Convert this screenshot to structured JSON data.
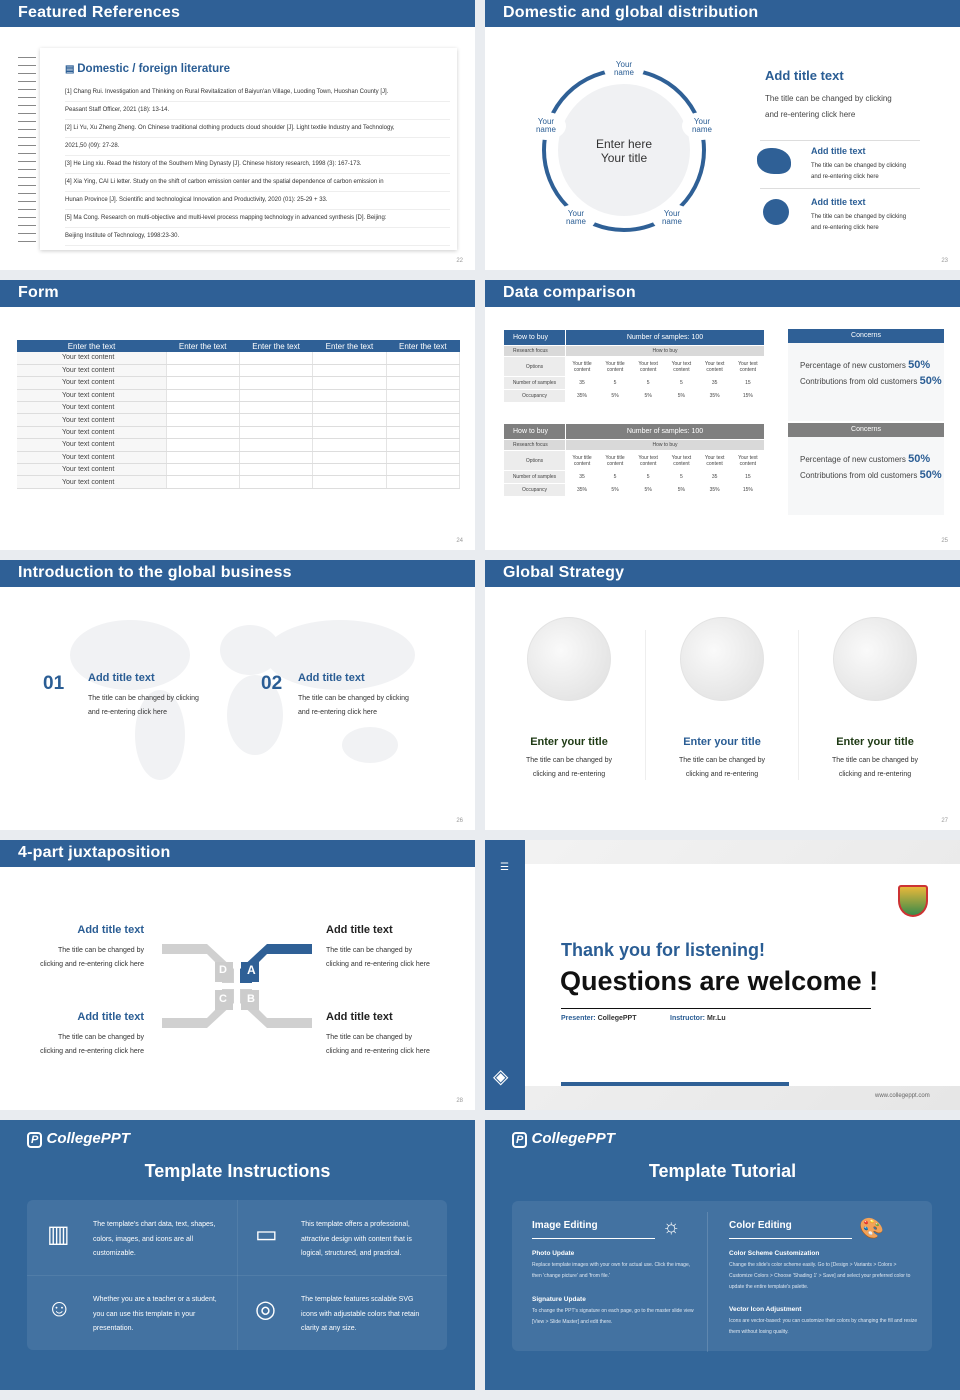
{
  "slides": {
    "s22": {
      "title": "Featured References",
      "heading": "Domestic / foreign literature",
      "page": "22",
      "refs": [
        "[1] Chang Rui. Investigation and Thinking on Rural Revitalization of Baiyun'an Village, Luoding Town, Huoshan County [J].",
        "Peasant Staff Officer, 2021 (18): 13-14.",
        "[2] Li Yu, Xu Zheng Zheng. On Chinese traditional clothing products cloud shoulder [J]. Light textile Industry and Technology,",
        "2021,50 (09): 27-28.",
        "[3] He Ling xiu. Read the history of the Southern Ming Dynasty [J]. Chinese history research, 1998 (3): 167-173.",
        "[4] Xia Ying, CAI Li letter. Study on the shift of carbon emission center and the spatial dependence of carbon emission in",
        "Hunan Province [J]. Scientific and technological Innovation and Productivity, 2020 (01): 25-29 + 33.",
        "[5] Ma Cong. Research on multi-objective and multi-level process mapping technology in advanced synthesis [D]. Beijing:",
        "Beijing Institute of Technology, 1998:23-30."
      ]
    },
    "s23": {
      "title": "Domestic and global distribution",
      "page": "23",
      "center": "Enter here\nYour title",
      "node_label": "Your\nname",
      "add_title": "Add title text",
      "add_desc": "The title can be changed by clicking\nand re-entering click here",
      "items": [
        {
          "title": "Add title text",
          "desc": "The title can be changed by clicking\nand re-entering click here",
          "icon": "china-map-icon"
        },
        {
          "title": "Add title text",
          "desc": "The title can be changed by clicking\nand re-entering click here",
          "icon": "globe-icon"
        }
      ]
    },
    "s24": {
      "title": "Form",
      "page": "24",
      "headers": [
        "Enter the text",
        "Enter the text",
        "Enter the text",
        "Enter the text",
        "Enter the text"
      ],
      "row_label": "Your text content",
      "row_count": 11
    },
    "s25": {
      "title": "Data comparison",
      "page": "25",
      "tables": [
        {
          "h1": "How to buy",
          "h2": "Number of samples: 100",
          "color": "#2f6096",
          "focus_label": "Research focus",
          "focus_value": "How to buy",
          "options_label": "Options",
          "options": [
            "Your title content",
            "Your title content",
            "Your text content",
            "Your text content",
            "Your text content",
            "Your text content"
          ],
          "samples_label": "Number of samples",
          "samples": [
            "35",
            "5",
            "5",
            "5",
            "35",
            "15"
          ],
          "occ_label": "Occupancy",
          "occ": [
            "35%",
            "5%",
            "5%",
            "5%",
            "35%",
            "15%"
          ]
        },
        {
          "h1": "How to buy",
          "h2": "Number of samples: 100",
          "color": "#7f7f7f",
          "focus_label": "Research focus",
          "focus_value": "How to buy",
          "options_label": "Options",
          "options": [
            "Your title content",
            "Your title content",
            "Your text content",
            "Your text content",
            "Your text content",
            "Your text content"
          ],
          "samples_label": "Number of samples",
          "samples": [
            "35",
            "5",
            "5",
            "5",
            "35",
            "15"
          ],
          "occ_label": "Occupancy",
          "occ": [
            "35%",
            "5%",
            "5%",
            "5%",
            "35%",
            "15%"
          ]
        }
      ],
      "concerns": [
        {
          "title": "Concerns",
          "color": "#2f6096",
          "l1": "Percentage of new customers",
          "v1": "50%",
          "l2": "Contributions from old customers",
          "v2": "50%"
        },
        {
          "title": "Concerns",
          "color": "#7f7f7f",
          "l1": "Percentage of new customers",
          "v1": "50%",
          "l2": "Contributions from old customers",
          "v2": "50%"
        }
      ]
    },
    "s26": {
      "title": "Introduction to the global business",
      "page": "26",
      "items": [
        {
          "num": "01",
          "title": "Add title text",
          "desc": "The title can be changed by clicking\nand re-entering click here"
        },
        {
          "num": "02",
          "title": "Add title text",
          "desc": "The title can be changed by clicking\nand re-entering click here"
        }
      ]
    },
    "s27": {
      "title": "Global Strategy",
      "page": "27",
      "items": [
        {
          "title": "Enter your title",
          "desc": "The title can be changed by\nclicking and re-entering",
          "color": "#1e3a14"
        },
        {
          "title": "Enter your title",
          "desc": "The title can be changed by\nclicking and re-entering",
          "color": "#2a5d94"
        },
        {
          "title": "Enter your title",
          "desc": "The title can be changed by\nclicking and re-entering",
          "color": "#1e3a14"
        }
      ]
    },
    "s28": {
      "title": "4-part juxtaposition",
      "page": "28",
      "letters": [
        "A",
        "B",
        "C",
        "D"
      ],
      "items": [
        {
          "title": "Add title text",
          "desc": "The title can be changed by\nclicking and re-entering click here"
        },
        {
          "title": "Add title text",
          "desc": "The title can be changed by\nclicking and re-entering click here"
        },
        {
          "title": "Add title text",
          "desc": "The title can be changed by\nclicking and re-entering click here"
        },
        {
          "title": "Add title text",
          "desc": "The title can be changed by\nclicking and re-entering click here"
        }
      ]
    },
    "s29": {
      "thanks": "Thank you for listening!",
      "questions": "Questions are welcome !",
      "presenter_label": "Presenter:",
      "presenter": "CollegePPT",
      "instructor_label": "Instructor:",
      "instructor": "Mr.Lu",
      "url": "www.collegeppt.com"
    },
    "s30": {
      "logo": "CollegePPT",
      "title": "Template Instructions",
      "cells": [
        {
          "icon": "ppt-file-icon",
          "text": "The template's chart data, text, shapes, colors, images, and icons are all customizable."
        },
        {
          "icon": "layers-box-icon",
          "text": "This template offers a professional, attractive design with content that is logical, structured, and practical."
        },
        {
          "icon": "teacher-icon",
          "text": "Whether you are a teacher or a student, you can use this template in your presentation."
        },
        {
          "icon": "ball-icon",
          "text": "The template features scalable SVG icons with adjustable colors that retain clarity at any size."
        }
      ]
    },
    "s31": {
      "logo": "CollegePPT",
      "title": "Template Tutorial",
      "cols": [
        {
          "heading": "Image Editing",
          "icon": "lightbulb-icon",
          "sections": [
            {
              "title": "Photo Update",
              "text": "Replace template images with your own for actual use. Click the image, then 'change picture' and 'from file.'"
            },
            {
              "title": "Signature Update",
              "text": "To change the PPT's signature on each page, go to the master slide view [View > Slide Master] and edit there."
            }
          ]
        },
        {
          "heading": "Color Editing",
          "icon": "palette-icon",
          "sections": [
            {
              "title": "Color Scheme Customization",
              "text": "Change the slide's color scheme easily. Go to [Design > Variants > Colors > Customize Colors > Choose 'Shading 1' > Save] and select your preferred color to update the entire template's palette."
            },
            {
              "title": "Vector Icon Adjustment",
              "text": "Icons are vector-based: you can customize their colors by changing the fill and resize them without losing quality."
            }
          ]
        }
      ]
    }
  },
  "colors": {
    "brand": "#2f6096",
    "bg_blue": "#336699",
    "gray": "#7f7f7f"
  }
}
